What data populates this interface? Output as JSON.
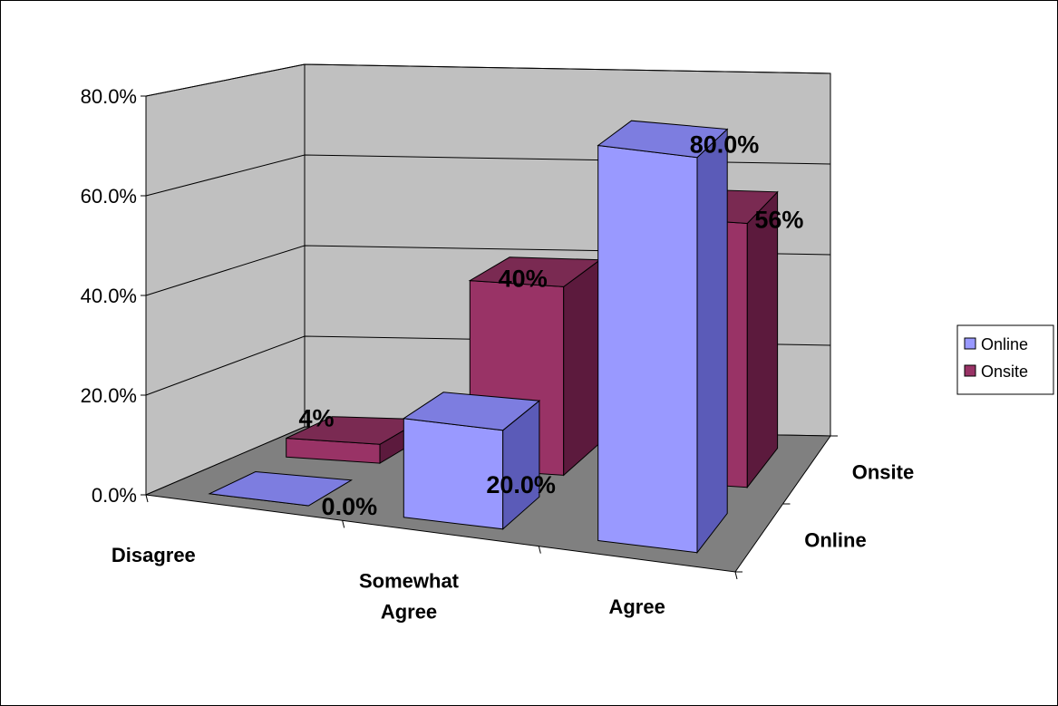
{
  "chart_data": {
    "type": "bar",
    "subtype": "3d-clustered-depth",
    "categories": [
      "Disagree",
      "Somewhat Agree",
      "Agree"
    ],
    "series": [
      {
        "name": "Online",
        "values": [
          0.0,
          20.0,
          80.0
        ],
        "labels": [
          "0.0%",
          "20.0%",
          "80.0%"
        ],
        "color": "#9999ff",
        "side_color": "#5b5bb8",
        "top_color": "#7d7de0"
      },
      {
        "name": "Onsite",
        "values": [
          4,
          40,
          56
        ],
        "labels": [
          "4%",
          "40%",
          "56%"
        ],
        "color": "#993366",
        "side_color": "#5c1a3d",
        "top_color": "#7a2a52"
      }
    ],
    "y_ticks": [
      "0.0%",
      "20.0%",
      "40.0%",
      "60.0%",
      "80.0%"
    ],
    "ylim": [
      0,
      80
    ],
    "depth_labels": [
      "Online",
      "Onsite"
    ],
    "legend": {
      "position": "right",
      "items": [
        "Online",
        "Onsite"
      ]
    },
    "wall_color": "#c0c0c0",
    "floor_color": "#808080",
    "grid": true
  }
}
